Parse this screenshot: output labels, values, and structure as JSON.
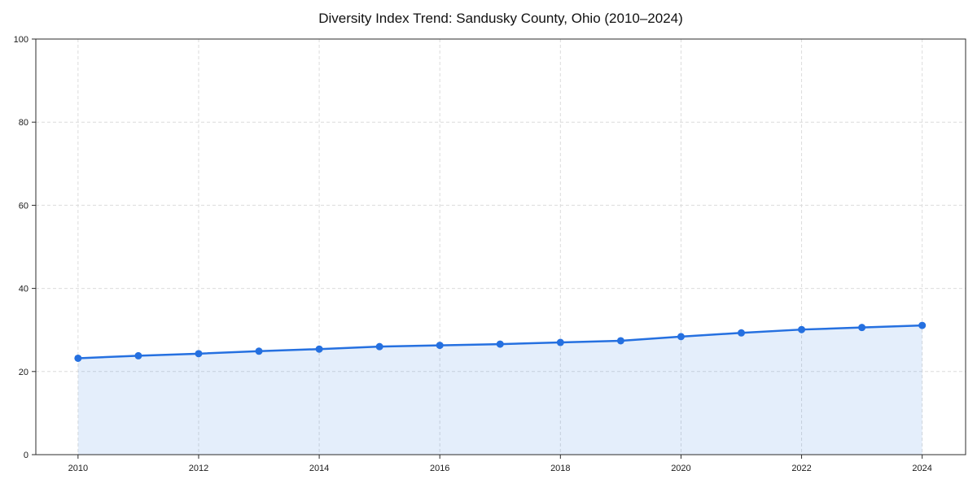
{
  "figure": {
    "background": "#ffffff"
  },
  "chart_data": {
    "type": "line",
    "title": "Diversity Index Trend: Sandusky County, Ohio (2010–2024)",
    "series_name": "Diversity Index",
    "x": [
      2010,
      2011,
      2012,
      2013,
      2014,
      2015,
      2016,
      2017,
      2018,
      2019,
      2020,
      2021,
      2022,
      2023,
      2024
    ],
    "values": [
      23.2,
      23.8,
      24.3,
      24.9,
      25.4,
      26.0,
      26.3,
      26.6,
      27.0,
      27.4,
      28.4,
      29.3,
      30.1,
      30.6,
      31.1
    ],
    "xlabel": "",
    "ylabel": "",
    "xlim": [
      2009.3,
      2024.72
    ],
    "ylim": [
      0,
      100
    ],
    "xticks": [
      2010,
      2012,
      2014,
      2016,
      2018,
      2020,
      2022,
      2024
    ],
    "yticks": [
      0,
      20,
      40,
      60,
      80,
      100
    ],
    "grid": true,
    "grid_style": "dashed",
    "legend": "none",
    "line_color": "#2570e0",
    "fill_color": "rgba(37, 112, 224, 0.12)",
    "marker": "circle",
    "grid_color": "#dcdcdc",
    "spine_color": "#2b2b2b",
    "tick_label_color": "#1a1a1a"
  }
}
